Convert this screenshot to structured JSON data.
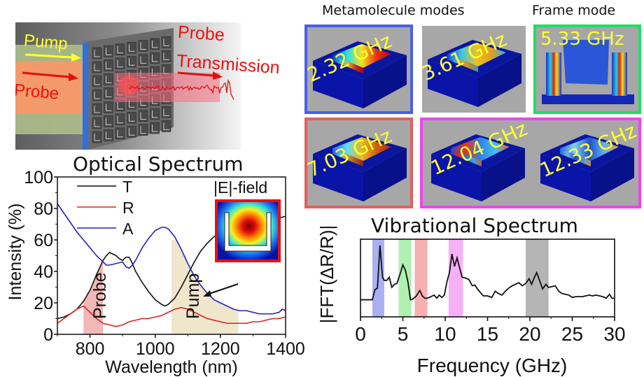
{
  "schematic": {
    "labels": {
      "pump": "Pump",
      "probe": "Probe",
      "probe_transmission_line1": "Probe",
      "probe_transmission_line2": "Transmission"
    },
    "colors": {
      "pump": "#ffff33",
      "probe": "#ee1111",
      "frame_edge": "#2f6fe0"
    }
  },
  "modes": {
    "group_titles": {
      "metamolecule": "Metamolecule modes",
      "frame": "Frame mode"
    },
    "panels": [
      {
        "freq": "2.32 GHz",
        "border": "#4a5ee8",
        "type": "metamolecule"
      },
      {
        "freq": "3.61 GHz",
        "border": "none",
        "type": "metamolecule"
      },
      {
        "freq": "5.33 GHz",
        "border": "#22dd66",
        "type": "frame"
      },
      {
        "freq": "7.03 GHz",
        "border": "#e06060",
        "type": "metamolecule"
      },
      {
        "freq": "12.04 GHz",
        "border": "#ee44ee",
        "type": "metamolecule"
      },
      {
        "freq": "12.33 GHz",
        "border": "#ee44ee",
        "type": "metamolecule"
      }
    ]
  },
  "chart_data": [
    {
      "type": "line",
      "title": "Optical Spectrum",
      "xlabel": "Wavelength (nm)",
      "ylabel": "Intensity (%)",
      "xlim": [
        700,
        1400
      ],
      "ylim": [
        0,
        100
      ],
      "xticks": [
        800,
        1000,
        1200,
        1400
      ],
      "yticks": [
        0,
        20,
        40,
        60,
        80,
        100
      ],
      "grid": false,
      "legend": {
        "placement": "top-left",
        "entries": [
          "T",
          "R",
          "A"
        ]
      },
      "series": [
        {
          "name": "T",
          "color": "#111111",
          "x": [
            700,
            720,
            740,
            760,
            780,
            800,
            820,
            840,
            850,
            860,
            870,
            880,
            890,
            900,
            910,
            920,
            930,
            940,
            960,
            980,
            1000,
            1020,
            1030,
            1040,
            1060,
            1080,
            1100,
            1120,
            1140,
            1160,
            1180,
            1200,
            1220,
            1240,
            1260,
            1280,
            1300,
            1320,
            1340,
            1360,
            1380,
            1400
          ],
          "y": [
            10,
            11,
            13,
            16,
            21,
            28,
            38,
            47,
            50,
            52,
            51,
            50,
            48,
            47,
            49,
            49,
            45,
            40,
            33,
            27,
            22,
            19,
            18,
            19,
            23,
            30,
            38,
            46,
            53,
            58,
            62,
            65,
            67,
            68,
            69,
            69,
            70,
            71,
            72,
            73,
            74,
            75
          ]
        },
        {
          "name": "R",
          "color": "#dd2222",
          "x": [
            700,
            720,
            740,
            760,
            780,
            800,
            820,
            840,
            860,
            880,
            900,
            920,
            940,
            960,
            980,
            1000,
            1020,
            1040,
            1060,
            1080,
            1100,
            1120,
            1140,
            1160,
            1180,
            1200,
            1220,
            1240,
            1260,
            1280,
            1300,
            1320,
            1340,
            1360,
            1380,
            1400
          ],
          "y": [
            7,
            10,
            13,
            16,
            18,
            14,
            10,
            7,
            6,
            5,
            6,
            8,
            9,
            10,
            10,
            11,
            12,
            14,
            16,
            17,
            16,
            14,
            12,
            10,
            9,
            8,
            7,
            7,
            7,
            7,
            8,
            8,
            9,
            10,
            10,
            11
          ]
        },
        {
          "name": "A",
          "color": "#2222cc",
          "x": [
            700,
            720,
            740,
            760,
            780,
            800,
            820,
            840,
            850,
            860,
            880,
            900,
            910,
            920,
            930,
            940,
            960,
            980,
            1000,
            1020,
            1030,
            1040,
            1060,
            1080,
            1100,
            1120,
            1140,
            1160,
            1180,
            1200,
            1220,
            1240,
            1260,
            1280,
            1300,
            1320,
            1340,
            1360,
            1380,
            1390,
            1400
          ],
          "y": [
            83,
            77,
            71,
            65,
            60,
            55,
            50,
            46,
            44,
            44,
            45,
            46,
            43,
            42,
            44,
            47,
            55,
            61,
            66,
            68,
            68,
            67,
            62,
            54,
            45,
            37,
            31,
            26,
            22,
            20,
            18,
            16,
            15,
            15,
            14,
            13,
            13,
            13,
            14,
            16,
            15
          ]
        }
      ],
      "shaded_regions": [
        {
          "label": "Probe",
          "x": [
            780,
            840
          ],
          "color": "#f2b8b8"
        },
        {
          "label": "Pump",
          "x": [
            1050,
            1255
          ],
          "color": "#efe6cc",
          "follows": "A"
        }
      ],
      "annotations": [
        {
          "text": "|E|-field",
          "type": "inset",
          "points_to": {
            "series": "A",
            "x": 1140
          }
        }
      ]
    },
    {
      "type": "line",
      "title": "Vibrational Spectrum",
      "xlabel": "Frequency (GHz)",
      "ylabel": "|FFT(ΔR/R)|",
      "xlim": [
        0,
        30
      ],
      "ylim": [
        0,
        1
      ],
      "xticks": [
        0,
        5,
        10,
        15,
        20,
        25,
        30
      ],
      "yticks": [],
      "grid": false,
      "series": [
        {
          "name": "FFT",
          "color": "#111111",
          "x": [
            0,
            1.4,
            1.7,
            2.0,
            2.3,
            2.6,
            2.8,
            3.1,
            3.4,
            3.7,
            4.0,
            4.3,
            4.7,
            5.0,
            5.3,
            5.6,
            5.9,
            6.2,
            6.6,
            7.0,
            7.3,
            7.6,
            7.9,
            8.3,
            8.7,
            9.0,
            9.3,
            9.6,
            9.9,
            10.2,
            10.5,
            10.8,
            11.1,
            11.4,
            11.7,
            12.0,
            12.4,
            12.8,
            13.2,
            13.5,
            13.8,
            14.1,
            14.5,
            15.0,
            15.5,
            15.9,
            16.3,
            16.7,
            17.1,
            17.5,
            17.9,
            18.3,
            18.7,
            19.1,
            19.5,
            19.9,
            20.2,
            20.5,
            20.8,
            21.1,
            21.5,
            21.9,
            22.2,
            22.6,
            23.0,
            23.4,
            23.8,
            24.2,
            24.6,
            25.0,
            25.4,
            25.8,
            26.2,
            26.6,
            27.0,
            27.4,
            27.8,
            28.2,
            28.6,
            29.0,
            29.4,
            29.7,
            30.0
          ],
          "y": [
            0.22,
            0.22,
            0.35,
            0.37,
            0.92,
            0.51,
            0.47,
            0.47,
            0.51,
            0.38,
            0.42,
            0.43,
            0.56,
            0.67,
            0.6,
            0.45,
            0.22,
            0.23,
            0.27,
            0.34,
            0.27,
            0.24,
            0.24,
            0.26,
            0.28,
            0.24,
            0.28,
            0.25,
            0.28,
            0.45,
            0.57,
            0.81,
            0.65,
            0.76,
            0.63,
            0.51,
            0.5,
            0.48,
            0.4,
            0.41,
            0.36,
            0.32,
            0.27,
            0.27,
            0.25,
            0.33,
            0.3,
            0.28,
            0.33,
            0.37,
            0.4,
            0.42,
            0.44,
            0.4,
            0.43,
            0.49,
            0.42,
            0.5,
            0.57,
            0.48,
            0.36,
            0.42,
            0.38,
            0.39,
            0.4,
            0.33,
            0.3,
            0.29,
            0.28,
            0.25,
            0.26,
            0.26,
            0.26,
            0.27,
            0.28,
            0.27,
            0.28,
            0.27,
            0.26,
            0.24,
            0.29,
            0.24,
            0.24
          ]
        }
      ],
      "shaded_regions": [
        {
          "x": [
            1.4,
            2.8
          ],
          "color": "#aab0f2"
        },
        {
          "x": [
            4.5,
            6.0
          ],
          "color": "#b0f0b0"
        },
        {
          "x": [
            6.4,
            7.9
          ],
          "color": "#f6b0b0"
        },
        {
          "x": [
            10.4,
            12.1
          ],
          "color": "#f6b0f6"
        },
        {
          "x": [
            19.5,
            22.2
          ],
          "color": "#b5b5b5"
        }
      ]
    }
  ]
}
